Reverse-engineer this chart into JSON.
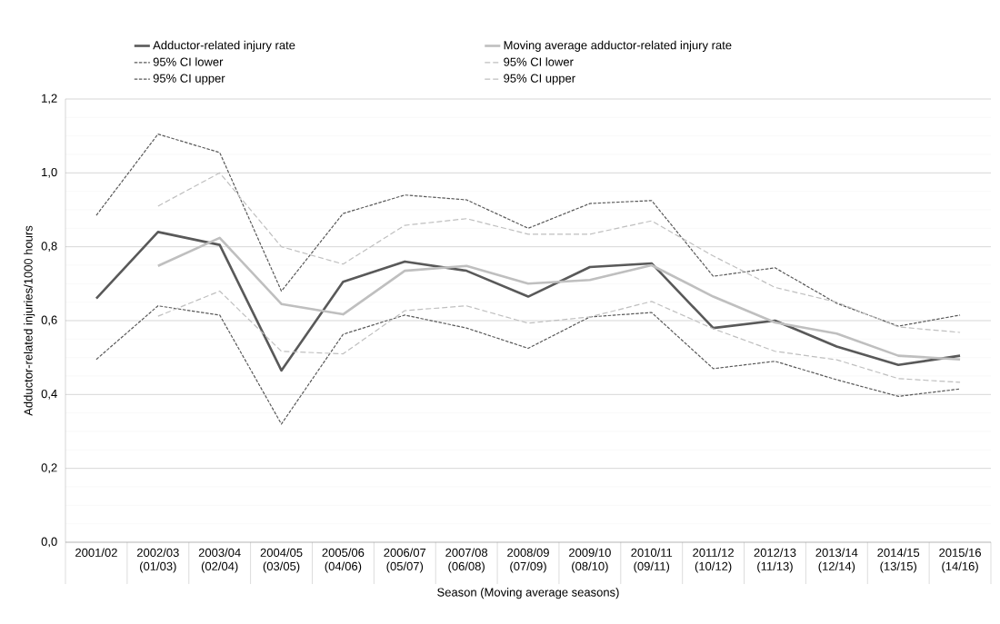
{
  "chart_data": {
    "type": "line",
    "xlabel": "Season (Moving average seasons)",
    "ylabel": "Adductor-related injuries/1000 hours",
    "categories": [
      "2001/02",
      "2002/03 (01/03)",
      "2003/04 (02/04)",
      "2004/05 (03/05)",
      "2005/06 (04/06)",
      "2006/07 (05/07)",
      "2007/08 (06/08)",
      "2008/09 (07/09)",
      "2009/10 (08/10)",
      "2010/11 (09/11)",
      "2011/12 (10/12)",
      "2012/13 (11/13)",
      "2013/14 (12/14)",
      "2014/15 (13/15)",
      "2015/16 (14/16)"
    ],
    "series": [
      {
        "name": "Adductor-related injury rate",
        "color": "#595959",
        "line_style": "solid",
        "values": [
          0.66,
          0.84,
          0.805,
          0.465,
          0.705,
          0.76,
          0.735,
          0.665,
          0.745,
          0.755,
          0.58,
          0.6,
          0.53,
          0.48,
          0.505
        ]
      },
      {
        "name": "Moving average adductor-related injury rate",
        "color": "#bfbfbf",
        "line_style": "solid",
        "values": [
          null,
          0.748,
          0.824,
          0.645,
          0.617,
          0.735,
          0.748,
          0.7,
          0.71,
          0.75,
          0.665,
          0.595,
          0.565,
          0.505,
          0.495
        ]
      },
      {
        "name": "95% CI lower",
        "color": "#595959",
        "line_style": "dashed",
        "values": [
          0.495,
          0.64,
          0.615,
          0.32,
          0.563,
          0.615,
          0.58,
          0.525,
          0.61,
          0.622,
          0.47,
          0.49,
          0.44,
          0.395,
          0.415
        ]
      },
      {
        "name": "95% CI lower",
        "color": "#bfbfbf",
        "line_style": "dashed",
        "values": [
          null,
          0.612,
          0.68,
          0.517,
          0.51,
          0.627,
          0.64,
          0.593,
          0.61,
          0.652,
          0.578,
          0.517,
          0.494,
          0.443,
          0.433
        ]
      },
      {
        "name": "95% CI upper",
        "color": "#595959",
        "line_style": "dashed",
        "values": [
          0.885,
          1.105,
          1.055,
          0.68,
          0.89,
          0.94,
          0.927,
          0.85,
          0.917,
          0.925,
          0.72,
          0.743,
          0.647,
          0.585,
          0.615
        ]
      },
      {
        "name": "95% CI upper",
        "color": "#bfbfbf",
        "line_style": "dashed",
        "values": [
          null,
          0.91,
          1.0,
          0.8,
          0.753,
          0.858,
          0.876,
          0.834,
          0.834,
          0.87,
          0.775,
          0.69,
          0.65,
          0.583,
          0.568
        ]
      }
    ],
    "ylim": [
      0,
      1.2
    ],
    "yticks": [
      {
        "value": 0,
        "label": "0,0"
      },
      {
        "value": 0.2,
        "label": "0,2"
      },
      {
        "value": 0.4,
        "label": "0,4"
      },
      {
        "value": 0.6,
        "label": "0,6"
      },
      {
        "value": 0.8,
        "label": "0,8"
      },
      {
        "value": 1.0,
        "label": "1,0"
      },
      {
        "value": 1.2,
        "label": "1,2"
      }
    ],
    "grid": "y",
    "legend": "top"
  }
}
